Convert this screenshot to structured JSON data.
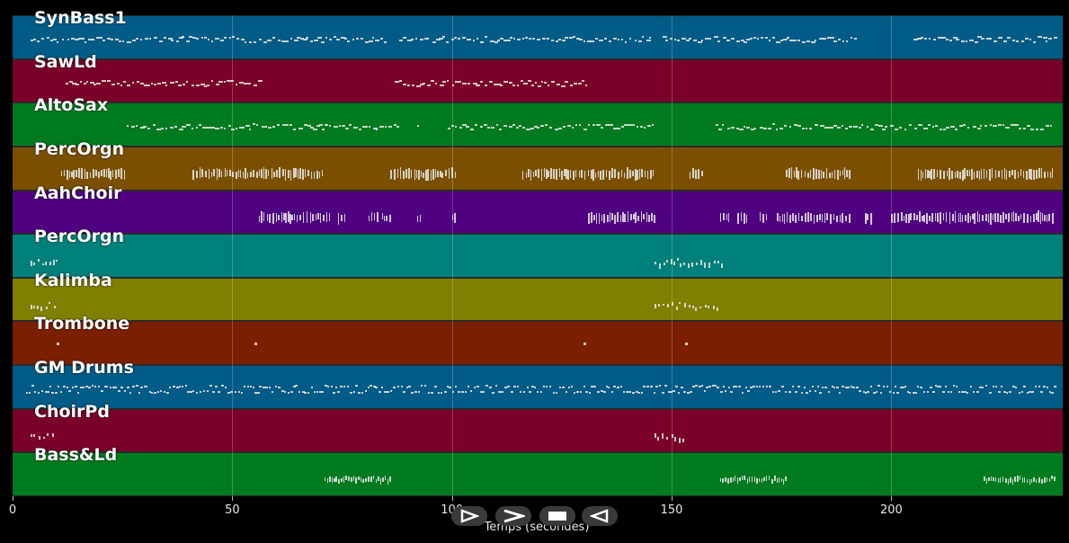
{
  "tracks": [
    {
      "name": "SynBass1",
      "color": "#005b86",
      "pattern": "bassline",
      "segments": [
        [
          4,
          85
        ],
        [
          88,
          145
        ],
        [
          148,
          192
        ],
        [
          205,
          237
        ]
      ]
    },
    {
      "name": "SawLd",
      "color": "#7a002a",
      "pattern": "lead",
      "segments": [
        [
          12,
          56
        ],
        [
          87,
          131
        ]
      ]
    },
    {
      "name": "AltoSax",
      "color": "#007a1f",
      "pattern": "melody",
      "segments": [
        [
          26,
          88
        ],
        [
          92,
          93
        ],
        [
          99,
          146
        ],
        [
          160,
          237
        ]
      ]
    },
    {
      "name": "PercOrgn",
      "color": "#7a5000",
      "pattern": "chords",
      "segments": [
        [
          11,
          26
        ],
        [
          41,
          56
        ],
        [
          56,
          71
        ],
        [
          86,
          101
        ],
        [
          116,
          146
        ],
        [
          154,
          157
        ],
        [
          176,
          191
        ],
        [
          206,
          237
        ]
      ]
    },
    {
      "name": "AahChoir",
      "color": "#4e0080",
      "pattern": "chords",
      "segments": [
        [
          56,
          72
        ],
        [
          74,
          76
        ],
        [
          81,
          83
        ],
        [
          84,
          86
        ],
        [
          92,
          93
        ],
        [
          100,
          101
        ],
        [
          131,
          146
        ],
        [
          161,
          163
        ],
        [
          165,
          167
        ],
        [
          170,
          172
        ],
        [
          174,
          191
        ],
        [
          194,
          196
        ],
        [
          200,
          237
        ]
      ]
    },
    {
      "name": "PercOrgn",
      "color": "#00807a",
      "pattern": "sparse",
      "segments": [
        [
          4,
          10
        ],
        [
          146,
          162
        ]
      ]
    },
    {
      "name": "Kalimba",
      "color": "#7f7f00",
      "pattern": "sparse",
      "segments": [
        [
          4,
          10
        ],
        [
          146,
          161
        ]
      ]
    },
    {
      "name": "Trombone",
      "color": "#7a2000",
      "pattern": "dots",
      "segments": [
        [
          10,
          11
        ],
        [
          55,
          56
        ],
        [
          130,
          131
        ],
        [
          153,
          154
        ]
      ]
    },
    {
      "name": "GM Drums",
      "color": "#005b86",
      "pattern": "drums",
      "segments": [
        [
          3,
          237
        ]
      ]
    },
    {
      "name": "ChoirPd",
      "color": "#7a002a",
      "pattern": "sparse",
      "segments": [
        [
          4,
          10
        ],
        [
          146,
          153
        ]
      ]
    },
    {
      "name": "Bass&Ld",
      "color": "#007a1f",
      "pattern": "riff",
      "segments": [
        [
          71,
          86
        ],
        [
          161,
          176
        ],
        [
          221,
          237
        ]
      ]
    }
  ],
  "axis": {
    "ticks": [
      "0",
      "50",
      "100",
      "150",
      "200"
    ],
    "tick_values": [
      0,
      50,
      100,
      150,
      200
    ],
    "xmax": 239,
    "title": "Temps (secondes)"
  },
  "controls": {
    "play": "play-outline",
    "forward": "fast-forward",
    "stop": "stop",
    "rewind": "rewind"
  }
}
